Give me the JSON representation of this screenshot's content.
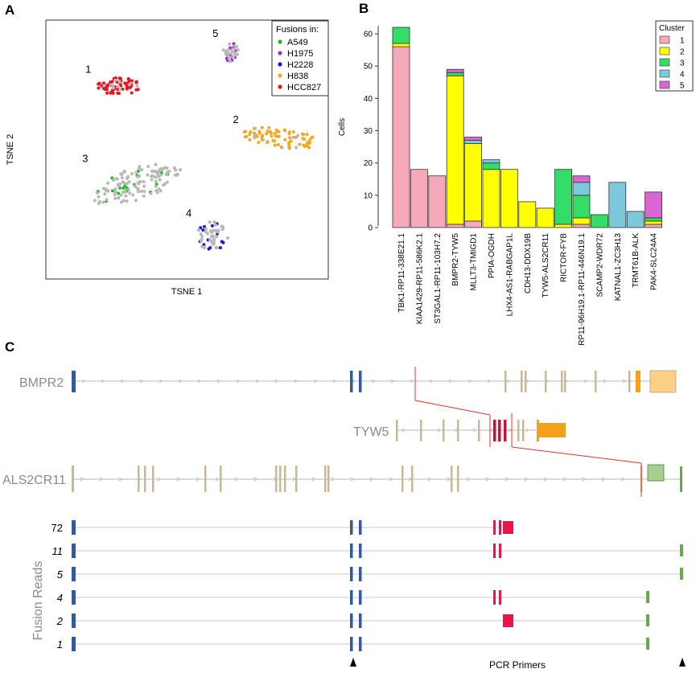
{
  "panel_labels": {
    "a": "A",
    "b": "B",
    "c": "C"
  },
  "chart_data": [
    {
      "type": "scatter",
      "xlabel": "TSNE 1",
      "ylabel": "TSNE 2",
      "legend": {
        "title": "Fusions in:",
        "placement": "top-right",
        "entries": [
          {
            "name": "A549",
            "color": "#22bb22"
          },
          {
            "name": "H1975",
            "color": "#9b30d9"
          },
          {
            "name": "H2228",
            "color": "#1a1acc"
          },
          {
            "name": "H838",
            "color": "#f5a623"
          },
          {
            "name": "HCC827",
            "color": "#e8141b"
          }
        ]
      },
      "clusters": [
        {
          "label": "1",
          "color": "#e8141b",
          "cx": -22,
          "cy": 22,
          "rx": 7,
          "ry": 3,
          "n": 60,
          "grey": 10
        },
        {
          "label": "2",
          "color": "#f5a623",
          "cx": 30,
          "cy": 4,
          "rx": 12,
          "ry": 3.5,
          "n": 70,
          "grey": 8
        },
        {
          "label": "3",
          "color": "#22bb22",
          "cx": -16,
          "cy": -12,
          "rx": 14,
          "ry": 6,
          "n": 18,
          "grey": 110
        },
        {
          "label": "4",
          "color": "#1a1acc",
          "cx": 8,
          "cy": -30,
          "rx": 5,
          "ry": 5,
          "n": 14,
          "grey": 40
        },
        {
          "label": "5",
          "color": "#9b30d9",
          "cx": 14,
          "cy": 34,
          "rx": 2.5,
          "ry": 3.5,
          "n": 12,
          "grey": 20
        }
      ],
      "xlim": [
        -45,
        45
      ],
      "ylim": [
        -45,
        45
      ]
    },
    {
      "type": "bar",
      "stacked": true,
      "ylabel": "Cells",
      "ylim": [
        0,
        62
      ],
      "yticks": [
        0,
        10,
        20,
        30,
        40,
        50,
        60
      ],
      "legend": {
        "title": "Cluster",
        "placement": "top-right",
        "entries": [
          {
            "name": "1",
            "color": "#f7a9bc"
          },
          {
            "name": "2",
            "color": "#ffff00"
          },
          {
            "name": "3",
            "color": "#33dd66"
          },
          {
            "name": "4",
            "color": "#7ec8dc"
          },
          {
            "name": "5",
            "color": "#d867d3"
          }
        ]
      },
      "categories": [
        {
          "name": "TBK1-RP11-338E21.1",
          "color": "#e8141b",
          "stack": [
            56,
            1,
            5,
            0,
            0
          ]
        },
        {
          "name": "KIAA1429-RP11-586K2.1",
          "color": "#e8141b",
          "stack": [
            18,
            0,
            0,
            0,
            0
          ]
        },
        {
          "name": "ST3GAL1-RP11-103H7.2",
          "color": "#e8141b",
          "stack": [
            16,
            0,
            0,
            0,
            0
          ]
        },
        {
          "name": "BMPR2-TYW5",
          "color": "#f5a623",
          "stack": [
            1,
            46,
            1,
            0,
            1
          ]
        },
        {
          "name": "MLLT3-TMIGD1",
          "color": "#f5a623",
          "stack": [
            2,
            24,
            0,
            1,
            1
          ]
        },
        {
          "name": "PPIA-OGDH",
          "color": "#f5a623",
          "stack": [
            0,
            18,
            2,
            1,
            0
          ]
        },
        {
          "name": "LHX4-AS1-RABGAP1L",
          "color": "#f5a623",
          "stack": [
            0,
            18,
            0,
            0,
            0
          ]
        },
        {
          "name": "CDH13-DDX19B",
          "color": "#f5a623",
          "stack": [
            0,
            8,
            0,
            0,
            0
          ]
        },
        {
          "name": "TYW5-ALS2CR11",
          "color": "#f5a623",
          "stack": [
            0,
            6,
            0,
            0,
            0
          ]
        },
        {
          "name": "RICTOR-FYB",
          "color": "#22bb22",
          "stack": [
            0,
            1,
            17,
            0,
            0
          ]
        },
        {
          "name": "RP11-96H19.1-RP11-446N19.1",
          "color": "#000000",
          "stack": [
            1,
            2,
            7,
            4,
            2
          ]
        },
        {
          "name": "SCAMP2-WDR72",
          "color": "#22bb22",
          "stack": [
            0,
            0,
            4,
            0,
            0
          ]
        },
        {
          "name": "KATNAL1-ZC3H13",
          "color": "#1a1acc",
          "stack": [
            0,
            0,
            0,
            14,
            0
          ]
        },
        {
          "name": "TRMT61B-ALK",
          "color": "#000000",
          "stack": [
            0,
            0,
            0,
            5,
            0
          ]
        },
        {
          "name": "PAK4-SLC24A4",
          "color": "#9b30d9",
          "stack": [
            1,
            1,
            1,
            0,
            8
          ]
        }
      ]
    }
  ],
  "gene_structure": {
    "genes": [
      {
        "name": "BMPR2"
      },
      {
        "name": "TYW5"
      },
      {
        "name": "ALS2CR11"
      }
    ],
    "colors": {
      "bmpr2_exon": "#2e5aa8",
      "intron_exon": "#c8b898",
      "tyw5_exon": "#c8103a",
      "utr_orange": "#f5a01a",
      "utr_light_orange": "#fdd08a",
      "als_exon": "#6aa84f",
      "als_utr": "#a8d08d",
      "fusion_pink": "#e8144a",
      "line": "#c8c8c8",
      "breakpoint": "#e83030"
    },
    "fusion_reads_label": "Fusion Reads",
    "read_counts": [
      "72",
      "11",
      "5",
      "4",
      "2",
      "1"
    ],
    "pcr_label": "PCR Primers"
  }
}
